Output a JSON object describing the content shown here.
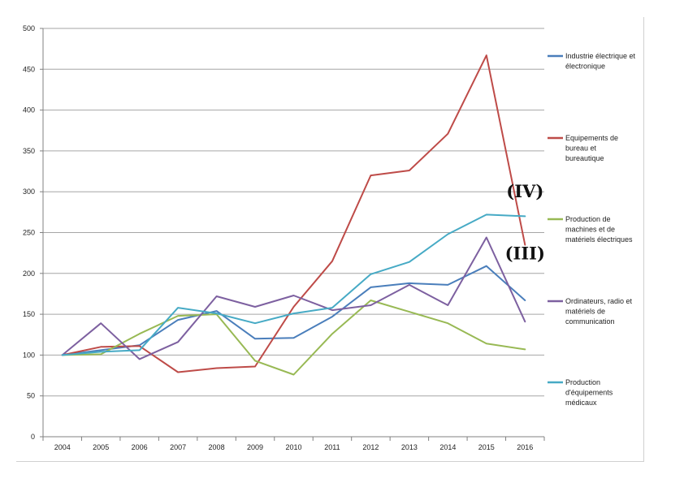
{
  "chart_data": {
    "type": "line",
    "title": "",
    "xlabel": "",
    "ylabel": "",
    "x": [
      2004,
      2005,
      2006,
      2007,
      2008,
      2009,
      2010,
      2011,
      2012,
      2013,
      2014,
      2015,
      2016
    ],
    "ylim": [
      0,
      500
    ],
    "yticks": [
      0,
      50,
      100,
      150,
      200,
      250,
      300,
      350,
      400,
      450,
      500
    ],
    "grid": "horizontal",
    "legend": "right",
    "series": [
      {
        "name": "Industrie électrique et électronique",
        "legend_lines": [
          "Industrie électrique et",
          "électronique"
        ],
        "color": "#4a7ebb",
        "values": [
          100,
          106,
          112,
          143,
          154,
          120,
          121,
          147,
          183,
          188,
          186,
          209,
          167
        ]
      },
      {
        "name": "Equipements de bureau et bureautique",
        "legend_lines": [
          "Equipements de",
          "bureau et",
          "bureautique"
        ],
        "color": "#be4b48",
        "values": [
          100,
          110,
          111,
          79,
          84,
          86,
          159,
          215,
          320,
          326,
          371,
          467,
          235
        ]
      },
      {
        "name": "Production de machines et de matériels électriques",
        "legend_lines": [
          "Production de",
          "machines et de",
          "matériels électriques"
        ],
        "color": "#98b954",
        "values": [
          100,
          101,
          126,
          148,
          150,
          93,
          76,
          126,
          167,
          153,
          139,
          114,
          107
        ]
      },
      {
        "name": "Ordinateurs, radio et matériels de communication",
        "legend_lines": [
          "Ordinateurs, radio et",
          "matériels de",
          "communication"
        ],
        "color": "#7d60a0",
        "values": [
          100,
          139,
          95,
          116,
          172,
          159,
          173,
          155,
          161,
          186,
          161,
          244,
          141
        ]
      },
      {
        "name": "Production d'équipements médicaux",
        "legend_lines": [
          "Production",
          "d'équipements",
          "médicaux"
        ],
        "color": "#46aac5",
        "values": [
          100,
          104,
          106,
          158,
          151,
          139,
          151,
          158,
          199,
          214,
          248,
          272,
          270
        ]
      }
    ],
    "annotations": [
      {
        "text": "(IV)",
        "x": 2016,
        "y": 293
      },
      {
        "text": "(III)",
        "x": 2016,
        "y": 217
      }
    ]
  }
}
